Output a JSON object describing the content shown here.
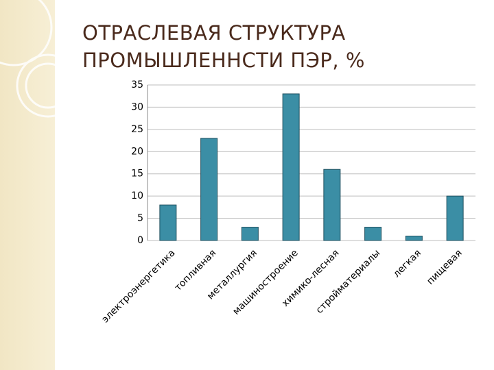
{
  "chart_data": {
    "type": "bar",
    "title": "ОТРАСЛЕВАЯ СТРУКТУРА ПРОМЫШЛЕННСТИ ПЭР, %",
    "categories": [
      "электроэнергетика",
      "топливная",
      "металлургия",
      "машиностроение",
      "химико-лесная",
      "стройматериалы",
      "легкая",
      "пищевая"
    ],
    "values": [
      8,
      23,
      3,
      33,
      16,
      3,
      1,
      10
    ],
    "color": "#3b8ea5",
    "ylim": [
      0,
      35
    ],
    "yticks": [
      0,
      5,
      10,
      15,
      20,
      25,
      30,
      35
    ],
    "grid": true
  }
}
